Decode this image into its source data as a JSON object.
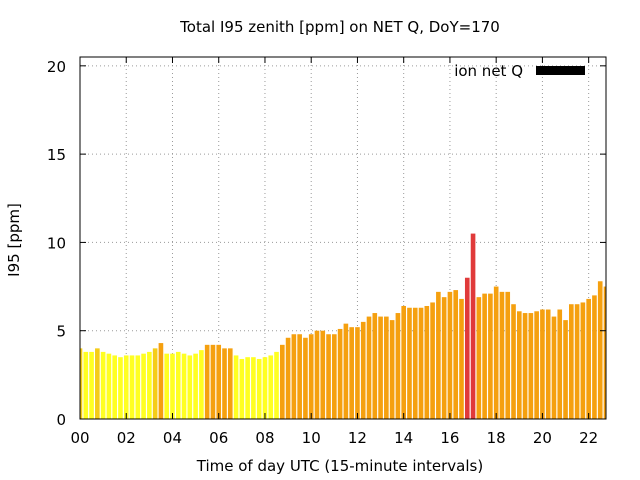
{
  "chart_data": {
    "type": "bar",
    "title": "Total I95 zenith [ppm] on NET Q, DoY=170",
    "xlabel": "Time of day UTC (15-minute intervals)",
    "ylabel": "I95 [ppm]",
    "xlim": [
      0,
      22.75
    ],
    "ylim": [
      0,
      20.5
    ],
    "yticks": [
      0,
      5,
      10,
      15,
      20
    ],
    "xticks": [
      0,
      2,
      4,
      6,
      8,
      10,
      12,
      14,
      16,
      18,
      20,
      22
    ],
    "xtick_labels": [
      "00",
      "02",
      "04",
      "06",
      "08",
      "10",
      "12",
      "14",
      "16",
      "18",
      "20",
      "22"
    ],
    "grid": true,
    "legend": {
      "label": "ion net Q",
      "position": "top-right",
      "color": "#000000"
    },
    "bar_interval_hours": 0.25,
    "colors": {
      "yellow": "#ffff22",
      "gold": "#f5cc18",
      "orange": "#f5a00f",
      "red": "#e03a3a"
    },
    "series": [
      {
        "x": [
          0.0,
          0.25,
          0.5,
          0.75,
          1.0,
          1.25,
          1.5,
          1.75,
          2.0,
          2.25,
          2.5,
          2.75,
          3.0,
          3.25,
          3.5,
          3.75,
          4.0,
          4.25,
          4.5,
          4.75,
          5.0,
          5.25,
          5.5,
          5.75,
          6.0,
          6.25,
          6.5,
          6.75,
          7.0,
          7.25,
          7.5,
          7.75,
          8.0,
          8.25,
          8.5,
          8.75,
          9.0,
          9.25,
          9.5,
          9.75,
          10.0,
          10.25,
          10.5,
          10.75,
          11.0,
          11.25,
          11.5,
          11.75,
          12.0,
          12.25,
          12.5,
          12.75,
          13.0,
          13.25,
          13.5,
          13.75,
          14.0,
          14.25,
          14.5,
          14.75,
          15.0,
          15.25,
          15.5,
          15.75,
          16.0,
          16.25,
          16.5,
          16.75,
          17.0,
          17.25,
          17.5,
          17.75,
          18.0,
          18.25,
          18.5,
          18.75,
          19.0,
          19.25,
          19.5,
          19.75,
          20.0,
          20.25,
          20.5,
          20.75,
          21.0,
          21.25,
          21.5,
          21.75,
          22.0,
          22.25,
          22.5,
          22.75
        ],
        "values": [
          4.0,
          3.8,
          3.8,
          4.0,
          3.8,
          3.7,
          3.6,
          3.5,
          3.6,
          3.6,
          3.6,
          3.7,
          3.8,
          4.0,
          4.3,
          3.7,
          3.7,
          3.8,
          3.7,
          3.6,
          3.7,
          3.9,
          4.2,
          4.2,
          4.2,
          4.0,
          4.0,
          3.6,
          3.4,
          3.5,
          3.5,
          3.4,
          3.5,
          3.6,
          3.8,
          4.2,
          4.6,
          4.8,
          4.8,
          4.6,
          4.8,
          5.0,
          5.0,
          4.8,
          4.8,
          5.1,
          5.4,
          5.2,
          5.2,
          5.5,
          5.8,
          6.0,
          5.8,
          5.8,
          5.6,
          6.0,
          6.4,
          6.3,
          6.3,
          6.3,
          6.4,
          6.6,
          7.2,
          6.9,
          7.2,
          7.3,
          6.8,
          8.0,
          10.5,
          6.9,
          7.1,
          7.1,
          7.5,
          7.2,
          7.2,
          6.5,
          6.1,
          6.0,
          6.0,
          6.1,
          6.2,
          6.2,
          5.8,
          6.2,
          5.6,
          6.5,
          6.5,
          6.6,
          6.8,
          7.0,
          7.8,
          7.5
        ],
        "color_keys": [
          "gold",
          "yellow",
          "yellow",
          "gold",
          "yellow",
          "yellow",
          "yellow",
          "yellow",
          "yellow",
          "yellow",
          "yellow",
          "yellow",
          "yellow",
          "gold",
          "orange",
          "yellow",
          "yellow",
          "yellow",
          "yellow",
          "yellow",
          "yellow",
          "yellow",
          "orange",
          "orange",
          "orange",
          "orange",
          "orange",
          "yellow",
          "yellow",
          "yellow",
          "yellow",
          "yellow",
          "yellow",
          "yellow",
          "yellow",
          "orange",
          "orange",
          "orange",
          "orange",
          "orange",
          "orange",
          "orange",
          "orange",
          "orange",
          "orange",
          "orange",
          "orange",
          "orange",
          "orange",
          "orange",
          "orange",
          "orange",
          "orange",
          "orange",
          "orange",
          "orange",
          "orange",
          "orange",
          "orange",
          "orange",
          "orange",
          "orange",
          "orange",
          "orange",
          "orange",
          "orange",
          "orange",
          "red",
          "red",
          "orange",
          "orange",
          "orange",
          "orange",
          "orange",
          "orange",
          "orange",
          "orange",
          "orange",
          "orange",
          "orange",
          "orange",
          "orange",
          "orange",
          "orange",
          "orange",
          "orange",
          "orange",
          "orange",
          "orange",
          "orange",
          "orange",
          "orange"
        ]
      }
    ]
  }
}
